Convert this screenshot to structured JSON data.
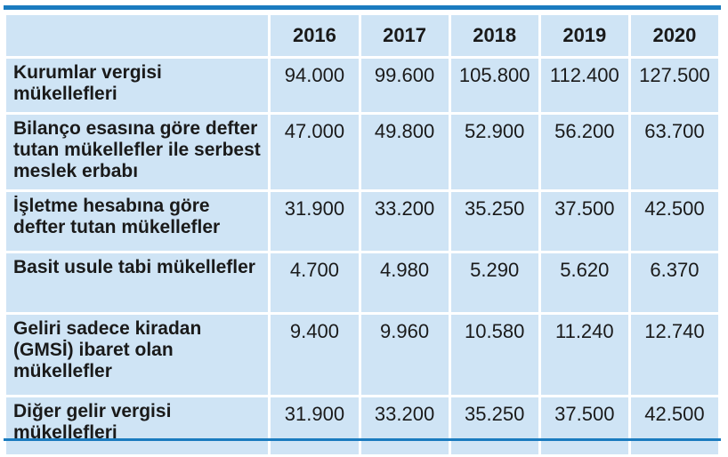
{
  "table": {
    "corner": "",
    "years": [
      "2016",
      "2017",
      "2018",
      "2019",
      "2020"
    ],
    "rows": [
      {
        "label": "Kurumlar vergisi mükellefleri",
        "values": [
          "94.000",
          "99.600",
          "105.800",
          "112.400",
          "127.500"
        ]
      },
      {
        "label": "Bilanço esasına göre defter tutan mükellefler ile serbest meslek erbabı",
        "values": [
          "47.000",
          "49.800",
          "52.900",
          "56.200",
          "63.700"
        ]
      },
      {
        "label": "İşletme hesabına göre defter tutan mükellefler",
        "values": [
          "31.900",
          "33.200",
          "35.250",
          "37.500",
          "42.500"
        ]
      },
      {
        "label": "Basit usule tabi mükellefler",
        "values": [
          "4.700",
          "4.980",
          "5.290",
          "5.620",
          "6.370"
        ]
      },
      {
        "label": "Geliri sadece kiradan (GMSİ) ibaret olan mükellefler",
        "values": [
          "9.400",
          "9.960",
          "10.580",
          "11.240",
          "12.740"
        ]
      },
      {
        "label": "Diğer gelir vergisi mükellefleri",
        "values": [
          "31.900",
          "33.200",
          "35.250",
          "37.500",
          "42.500"
        ]
      }
    ]
  },
  "colors": {
    "accent": "#1a7bbf",
    "cell_background": "#cfe4f5",
    "text": "#1a1a1a"
  }
}
